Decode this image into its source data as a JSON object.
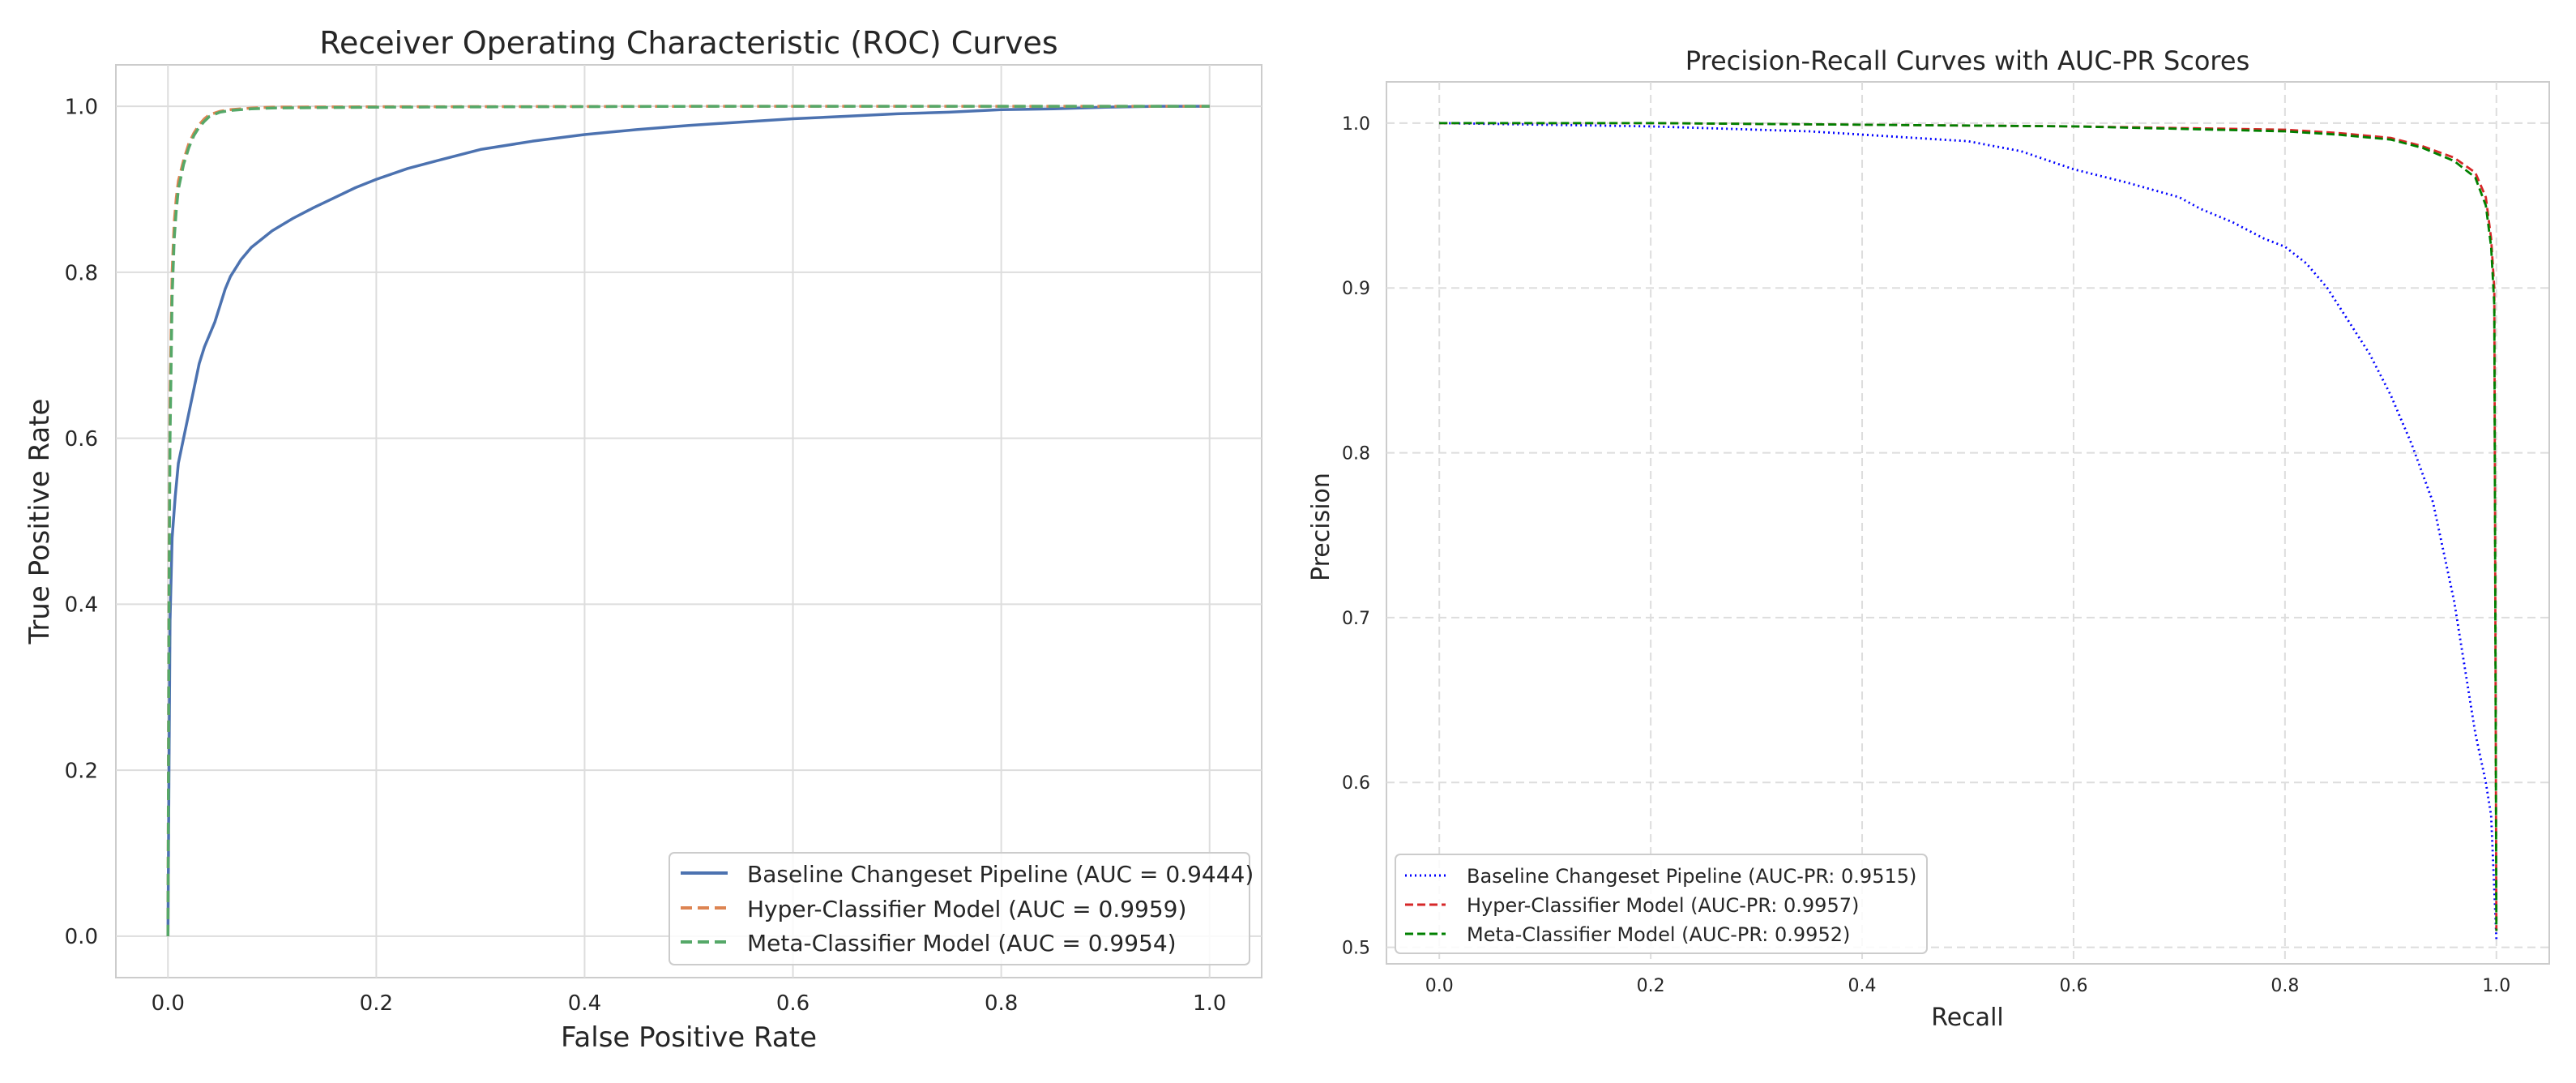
{
  "chart_data": [
    {
      "type": "line",
      "title": "Receiver Operating Characteristic (ROC) Curves",
      "xlabel": "False Positive Rate",
      "ylabel": "True Positive Rate",
      "xlim": [
        -0.05,
        1.05
      ],
      "ylim": [
        -0.05,
        1.05
      ],
      "xticks": [
        "0.0",
        "0.2",
        "0.4",
        "0.6",
        "0.8",
        "1.0"
      ],
      "yticks": [
        "0.0",
        "0.2",
        "0.4",
        "0.6",
        "0.8",
        "1.0"
      ],
      "grid": true,
      "grid_style": "solid",
      "legend_position": "lower-right",
      "series": [
        {
          "name": "Baseline Changeset Pipeline (AUC = 0.9444)",
          "color": "#4c72b0",
          "dash": "solid",
          "points": [
            [
              0,
              0
            ],
            [
              0.001,
              0.2
            ],
            [
              0.002,
              0.38
            ],
            [
              0.004,
              0.48
            ],
            [
              0.007,
              0.53
            ],
            [
              0.01,
              0.57
            ],
            [
              0.015,
              0.6
            ],
            [
              0.02,
              0.63
            ],
            [
              0.025,
              0.66
            ],
            [
              0.03,
              0.69
            ],
            [
              0.035,
              0.71
            ],
            [
              0.04,
              0.725
            ],
            [
              0.045,
              0.74
            ],
            [
              0.05,
              0.76
            ],
            [
              0.055,
              0.78
            ],
            [
              0.06,
              0.795
            ],
            [
              0.07,
              0.815
            ],
            [
              0.08,
              0.83
            ],
            [
              0.09,
              0.84
            ],
            [
              0.1,
              0.85
            ],
            [
              0.12,
              0.865
            ],
            [
              0.14,
              0.878
            ],
            [
              0.16,
              0.89
            ],
            [
              0.18,
              0.902
            ],
            [
              0.2,
              0.912
            ],
            [
              0.23,
              0.925
            ],
            [
              0.26,
              0.935
            ],
            [
              0.3,
              0.948
            ],
            [
              0.35,
              0.958
            ],
            [
              0.4,
              0.966
            ],
            [
              0.45,
              0.972
            ],
            [
              0.5,
              0.977
            ],
            [
              0.55,
              0.981
            ],
            [
              0.6,
              0.985
            ],
            [
              0.65,
              0.988
            ],
            [
              0.7,
              0.991
            ],
            [
              0.75,
              0.993
            ],
            [
              0.8,
              0.996
            ],
            [
              0.85,
              0.997
            ],
            [
              0.9,
              0.999
            ],
            [
              0.95,
              1.0
            ],
            [
              1.0,
              1.0
            ]
          ]
        },
        {
          "name": "Hyper-Classifier Model (AUC = 0.9959)",
          "color": "#dd8452",
          "dash": "dashed",
          "points": [
            [
              0,
              0
            ],
            [
              0.001,
              0.45
            ],
            [
              0.002,
              0.65
            ],
            [
              0.004,
              0.8
            ],
            [
              0.006,
              0.86
            ],
            [
              0.008,
              0.89
            ],
            [
              0.01,
              0.91
            ],
            [
              0.015,
              0.935
            ],
            [
              0.02,
              0.955
            ],
            [
              0.025,
              0.968
            ],
            [
              0.03,
              0.978
            ],
            [
              0.035,
              0.985
            ],
            [
              0.04,
              0.99
            ],
            [
              0.05,
              0.994
            ],
            [
              0.06,
              0.996
            ],
            [
              0.08,
              0.998
            ],
            [
              0.1,
              0.999
            ],
            [
              0.2,
              0.9995
            ],
            [
              0.5,
              1.0
            ],
            [
              1.0,
              1.0
            ]
          ]
        },
        {
          "name": "Meta-Classifier Model (AUC = 0.9954)",
          "color": "#55a868",
          "dash": "dashed",
          "points": [
            [
              0,
              0
            ],
            [
              0.001,
              0.4
            ],
            [
              0.002,
              0.6
            ],
            [
              0.004,
              0.77
            ],
            [
              0.006,
              0.84
            ],
            [
              0.008,
              0.875
            ],
            [
              0.01,
              0.9
            ],
            [
              0.015,
              0.93
            ],
            [
              0.02,
              0.95
            ],
            [
              0.025,
              0.965
            ],
            [
              0.03,
              0.975
            ],
            [
              0.035,
              0.982
            ],
            [
              0.04,
              0.988
            ],
            [
              0.05,
              0.993
            ],
            [
              0.06,
              0.995
            ],
            [
              0.08,
              0.997
            ],
            [
              0.1,
              0.998
            ],
            [
              0.2,
              0.999
            ],
            [
              0.5,
              1.0
            ],
            [
              1.0,
              1.0
            ]
          ]
        }
      ]
    },
    {
      "type": "line",
      "title": "Precision-Recall Curves with AUC-PR Scores",
      "xlabel": "Recall",
      "ylabel": "Precision",
      "xlim": [
        -0.05,
        1.05
      ],
      "ylim": [
        0.49,
        1.025
      ],
      "xticks": [
        "0.0",
        "0.2",
        "0.4",
        "0.6",
        "0.8",
        "1.0"
      ],
      "yticks": [
        "0.5",
        "0.6",
        "0.7",
        "0.8",
        "0.9",
        "1.0"
      ],
      "grid": true,
      "grid_style": "dashed",
      "legend_position": "lower-left",
      "series": [
        {
          "name": "Baseline Changeset Pipeline (AUC-PR: 0.9515)",
          "color": "#0000ff",
          "dash": "dotted",
          "points": [
            [
              0,
              1.0
            ],
            [
              0.1,
              0.999
            ],
            [
              0.2,
              0.998
            ],
            [
              0.3,
              0.996
            ],
            [
              0.35,
              0.995
            ],
            [
              0.4,
              0.993
            ],
            [
              0.45,
              0.991
            ],
            [
              0.5,
              0.989
            ],
            [
              0.55,
              0.983
            ],
            [
              0.6,
              0.972
            ],
            [
              0.65,
              0.964
            ],
            [
              0.7,
              0.955
            ],
            [
              0.72,
              0.948
            ],
            [
              0.75,
              0.94
            ],
            [
              0.78,
              0.93
            ],
            [
              0.8,
              0.925
            ],
            [
              0.82,
              0.915
            ],
            [
              0.84,
              0.9
            ],
            [
              0.86,
              0.88
            ],
            [
              0.88,
              0.86
            ],
            [
              0.9,
              0.835
            ],
            [
              0.92,
              0.805
            ],
            [
              0.94,
              0.77
            ],
            [
              0.95,
              0.74
            ],
            [
              0.96,
              0.71
            ],
            [
              0.97,
              0.67
            ],
            [
              0.98,
              0.63
            ],
            [
              0.99,
              0.6
            ],
            [
              0.995,
              0.58
            ],
            [
              1.0,
              0.505
            ]
          ]
        },
        {
          "name": "Hyper-Classifier Model (AUC-PR: 0.9957)",
          "color": "#d62728",
          "dash": "dashed",
          "points": [
            [
              0,
              1.0
            ],
            [
              0.2,
              1.0
            ],
            [
              0.4,
              0.999
            ],
            [
              0.6,
              0.998
            ],
            [
              0.8,
              0.996
            ],
            [
              0.85,
              0.994
            ],
            [
              0.9,
              0.991
            ],
            [
              0.93,
              0.986
            ],
            [
              0.96,
              0.979
            ],
            [
              0.98,
              0.97
            ],
            [
              0.99,
              0.955
            ],
            [
              0.995,
              0.93
            ],
            [
              0.998,
              0.9
            ],
            [
              1.0,
              0.51
            ]
          ]
        },
        {
          "name": "Meta-Classifier Model (AUC-PR: 0.9952)",
          "color": "#008000",
          "dash": "dashed",
          "points": [
            [
              0,
              1.0
            ],
            [
              0.2,
              1.0
            ],
            [
              0.4,
              0.999
            ],
            [
              0.6,
              0.998
            ],
            [
              0.8,
              0.995
            ],
            [
              0.85,
              0.993
            ],
            [
              0.9,
              0.99
            ],
            [
              0.93,
              0.985
            ],
            [
              0.96,
              0.977
            ],
            [
              0.98,
              0.967
            ],
            [
              0.99,
              0.95
            ],
            [
              0.995,
              0.925
            ],
            [
              0.998,
              0.89
            ],
            [
              1.0,
              0.51
            ]
          ]
        }
      ]
    }
  ]
}
